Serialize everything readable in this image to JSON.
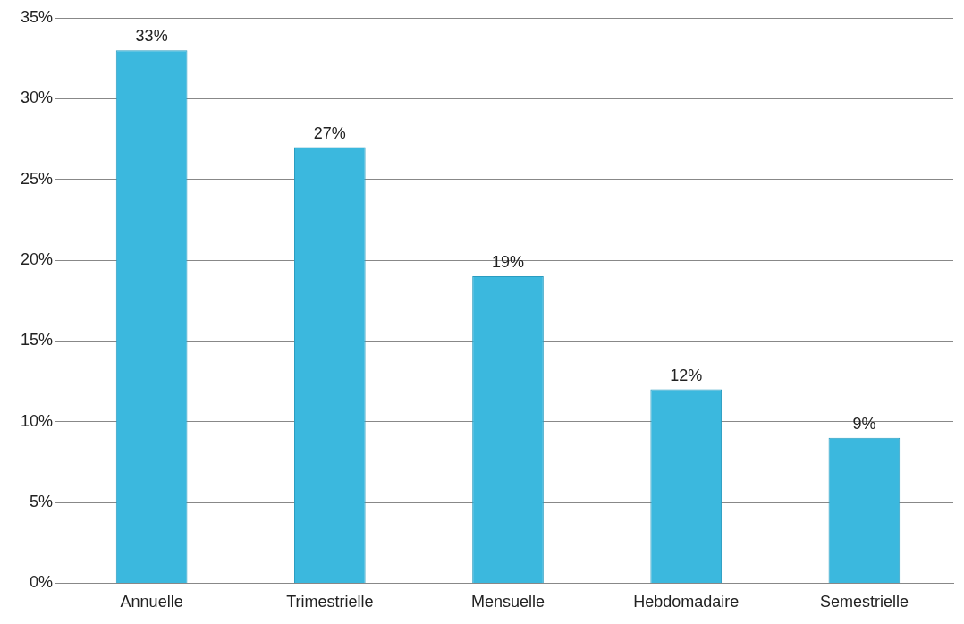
{
  "chart_data": {
    "type": "bar",
    "categories": [
      "Annuelle",
      "Trimestrielle",
      "Mensuelle",
      "Hebdomadaire",
      "Semestrielle"
    ],
    "values": [
      33,
      27,
      19,
      12,
      9
    ],
    "value_labels": [
      "33%",
      "27%",
      "19%",
      "12%",
      "9%"
    ],
    "color": "#3bb8de",
    "ylim": [
      0,
      35
    ],
    "yticks": [
      {
        "value": 0,
        "label": "0%"
      },
      {
        "value": 5,
        "label": "5%"
      },
      {
        "value": 10,
        "label": "10%"
      },
      {
        "value": 15,
        "label": "15%"
      },
      {
        "value": 20,
        "label": "20%"
      },
      {
        "value": 25,
        "label": "25%"
      },
      {
        "value": 30,
        "label": "30%"
      },
      {
        "value": 35,
        "label": "35%"
      }
    ],
    "grid": "y"
  }
}
